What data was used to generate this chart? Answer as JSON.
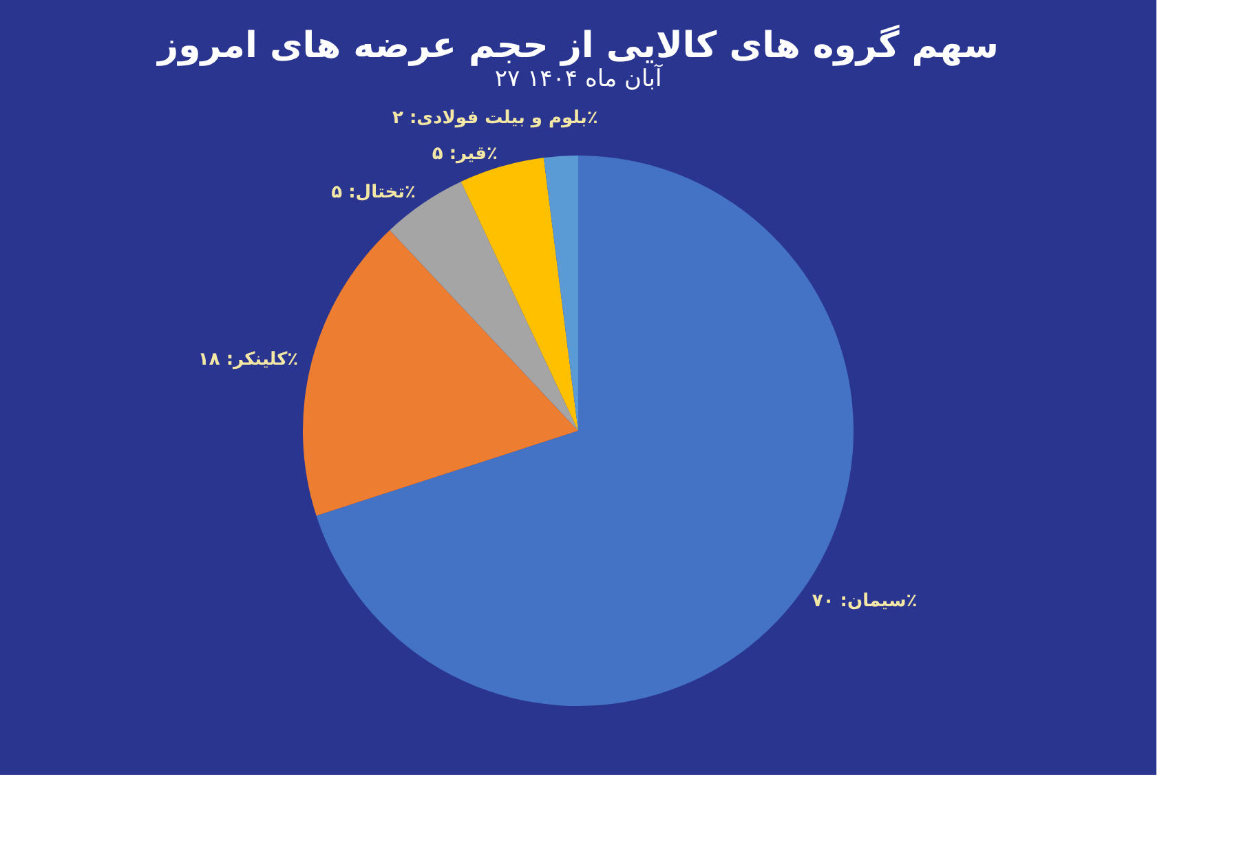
{
  "chart_data": {
    "type": "pie",
    "title": "سهم گروه های کالایی از حجم عرضه های امروز",
    "subtitle": "۲۷ آبان ماه ۱۴۰۴",
    "categories": [
      "سیمان",
      "کلینکر",
      "تختال",
      "قیر",
      "بلوم و بیلت فولادی"
    ],
    "values": [
      70,
      18,
      5,
      5,
      2
    ],
    "colors": [
      "#4472c4",
      "#ed7d31",
      "#a5a5a5",
      "#ffc000",
      "#5b9bd5"
    ],
    "value_labels": [
      "۷۰٪",
      "۱۸٪",
      "۵٪",
      "۵٪",
      "۲٪"
    ]
  }
}
